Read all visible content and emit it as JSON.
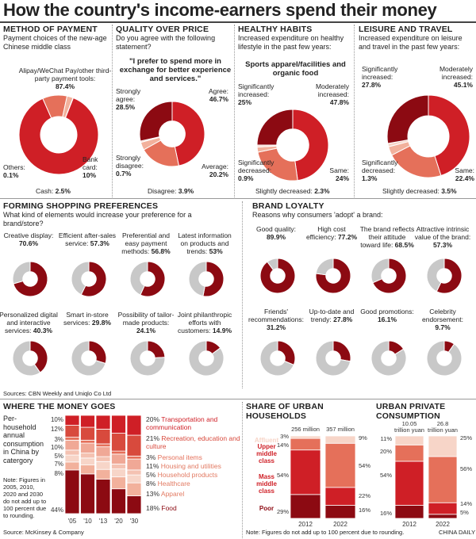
{
  "title": "How the country's income-earners spend their money",
  "colors": {
    "dark": "#8c0a12",
    "red": "#cf1f26",
    "mid": "#e5705a",
    "light": "#f2b19c",
    "pale": "#f7d5c8",
    "grey": "#c8c8c8"
  },
  "method": {
    "header": "METHOD OF PAYMENT",
    "question": "Payment choices of the new-age Chinese middle class",
    "alipay_label": "Alipay/WeChat Pay/other third-party payment tools:",
    "alipay_value": "87.4%",
    "others_label": "Others:",
    "others_value": "0.1%",
    "cash_label": "Cash:",
    "cash_value": "2.5%",
    "bank_label": "Bank card:",
    "bank_value": "10%"
  },
  "quality": {
    "header": "QUALITY OVER PRICE",
    "question": "Do you agree with the following statement?",
    "quote": "\"I prefer to spend more in exchange for better experience and services.\"",
    "sa_label": "Strongly agree:",
    "sa_value": "28.5%",
    "agree_label": "Agree:",
    "agree_value": "46.7%",
    "sd_label": "Strongly disagree:",
    "sd_value": "0.7%",
    "avg_label": "Average:",
    "avg_value": "20.2%",
    "dis_label": "Disagree:",
    "dis_value": "3.9%"
  },
  "healthy": {
    "header": "HEALTHY HABITS",
    "question": "Increased expenditure on healthy lifestyle in the past few years:",
    "sub": "Sports apparel/facilities and organic food",
    "si_label": "Significantly increased:",
    "si_value": "25%",
    "mi_label": "Moderately increased:",
    "mi_value": "47.8%",
    "sd_label": "Significantly decreased:",
    "sd_value": "0.9%",
    "same_label": "Same:",
    "same_value": "24%",
    "sld_label": "Slightly decreased:",
    "sld_value": "2.3%"
  },
  "leisure": {
    "header": "LEISURE AND TRAVEL",
    "question": "Increased expenditure on leisure and travel in the past few years:",
    "si_label": "Significantly increased:",
    "si_value": "27.8%",
    "mi_label": "Moderately increased:",
    "mi_value": "45.1%",
    "sd_label": "Significantly decreased:",
    "sd_value": "1.3%",
    "same_label": "Same:",
    "same_value": "22.4%",
    "sld_label": "Slightly decreased:",
    "sld_value": "3.5%"
  },
  "shopping": {
    "header": "FORMING SHOPPING PREFERENCES",
    "question": "What kind of elements would increase your preference for a brand/store?",
    "items": [
      {
        "label": "Creative display:",
        "value": "70.6%"
      },
      {
        "label": "Efficient after-sales service:",
        "value": "57.3%"
      },
      {
        "label": "Preferential and easy payment methods:",
        "value": "56.8%"
      },
      {
        "label": "Latest information on products and trends:",
        "value": "53%"
      },
      {
        "label": "Personalized digital and interactive services:",
        "value": "40.3%"
      },
      {
        "label": "Smart in-store services:",
        "value": "29.8%"
      },
      {
        "label": "Possibility of tailor-made products:",
        "value": "24.1%"
      },
      {
        "label": "Joint philanthropic efforts with customers:",
        "value": "14.9%"
      }
    ]
  },
  "loyalty": {
    "header": "BRAND LOYALTY",
    "question": "Reasons why consumers 'adopt' a brand:",
    "items": [
      {
        "label": "Good quality:",
        "value": "89.9%"
      },
      {
        "label": "High cost efficiency:",
        "value": "77.2%"
      },
      {
        "label": "The brand reflects their attitude toward life:",
        "value": "68.5%"
      },
      {
        "label": "Attractive intrinsic value of the brand:",
        "value": "57.3%"
      },
      {
        "label": "Friends' recommendations:",
        "value": "31.2%"
      },
      {
        "label": "Up-to-date and trendy:",
        "value": "27.8%"
      },
      {
        "label": "Good promotions:",
        "value": "16.1%"
      },
      {
        "label": "Celebrity endorsement:",
        "value": "9.7%"
      }
    ]
  },
  "sources1": "Sources: CBN Weekly and Uniqlo Co Ltd",
  "money": {
    "header": "WHERE THE MONEY GOES",
    "desc": "Per-household annual consumption in China by catergory",
    "note": "Note: Figures in 2005, 2010, 2020 and 2030 do not add up to 100 percent due to rounding.",
    "source": "Source: McKinsey & Company",
    "left_pcts": [
      "10%",
      "12%",
      "3%",
      "10%",
      "5%",
      "7%",
      "8%",
      "44%"
    ],
    "years": [
      "'05",
      "'10",
      "'13",
      "'20",
      "'30"
    ],
    "legend": [
      {
        "pct": "20%",
        "label": "Transportation and communication"
      },
      {
        "pct": "21%",
        "label": "Recreation, education and culture"
      },
      {
        "pct": "3%",
        "label": "Personal items"
      },
      {
        "pct": "11%",
        "label": "Housing and utilities"
      },
      {
        "pct": "5%",
        "label": "Household products"
      },
      {
        "pct": "8%",
        "label": "Healthcare"
      },
      {
        "pct": "13%",
        "label": "Apparel"
      },
      {
        "pct": "18%",
        "label": "Food"
      }
    ]
  },
  "households": {
    "header": "SHARE OF URBAN HOUSEHOLDS",
    "tiers": [
      "Affluent",
      "Upper middle class",
      "Mass middle class",
      "Poor"
    ],
    "top_labels": [
      "256 million",
      "357 million"
    ],
    "left_pcts": [
      "3%",
      "14%",
      "54%",
      "29%"
    ],
    "right_pcts": [
      "9%",
      "54%",
      "22%",
      "16%"
    ],
    "years": [
      "2012",
      "2022"
    ]
  },
  "private": {
    "header": "URBAN PRIVATE CONSUMPTION",
    "top_labels": [
      "10.05 trillion yuan",
      "26.8 trillion yuan"
    ],
    "left_pcts": [
      "11%",
      "20%",
      "54%",
      "16%"
    ],
    "right_pcts": [
      "25%",
      "56%",
      "14%",
      "5%"
    ],
    "years": [
      "2012",
      "2022"
    ]
  },
  "footnote": "Note: Figures do not add up to 100 percent due to rounding.",
  "credit": "CHINA DAILY",
  "chart_data": [
    {
      "type": "pie",
      "title": "METHOD OF PAYMENT",
      "categories": [
        "Alipay/WeChat Pay/other third-party payment tools",
        "Bank card",
        "Cash",
        "Others"
      ],
      "values": [
        87.4,
        10,
        2.5,
        0.1
      ]
    },
    {
      "type": "pie",
      "title": "QUALITY OVER PRICE",
      "categories": [
        "Agree",
        "Average",
        "Disagree",
        "Strongly disagree",
        "Strongly agree"
      ],
      "values": [
        46.7,
        20.2,
        3.9,
        0.7,
        28.5
      ]
    },
    {
      "type": "pie",
      "title": "HEALTHY HABITS",
      "categories": [
        "Moderately increased",
        "Same",
        "Slightly decreased",
        "Significantly decreased",
        "Significantly increased"
      ],
      "values": [
        47.8,
        24,
        2.3,
        0.9,
        25
      ]
    },
    {
      "type": "pie",
      "title": "LEISURE AND TRAVEL",
      "categories": [
        "Moderately increased",
        "Same",
        "Slightly decreased",
        "Significantly decreased",
        "Significantly increased"
      ],
      "values": [
        45.1,
        22.4,
        3.5,
        1.3,
        27.8
      ]
    },
    {
      "type": "bar",
      "title": "FORMING SHOPPING PREFERENCES",
      "values": [
        70.6,
        57.3,
        56.8,
        53,
        40.3,
        29.8,
        24.1,
        14.9
      ]
    },
    {
      "type": "bar",
      "title": "BRAND LOYALTY",
      "values": [
        89.9,
        77.2,
        68.5,
        57.3,
        31.2,
        27.8,
        16.1,
        9.7
      ]
    },
    {
      "type": "bar",
      "title": "WHERE THE MONEY GOES",
      "categories": [
        "'05",
        "'10",
        "'13",
        "'20",
        "'30"
      ],
      "series": [
        {
          "name": "Food",
          "values": [
            44,
            40,
            35,
            25,
            18
          ]
        },
        {
          "name": "Apparel",
          "values": [
            8,
            9,
            10,
            12,
            13
          ]
        },
        {
          "name": "Healthcare",
          "values": [
            7,
            7,
            8,
            8,
            8
          ]
        },
        {
          "name": "Household products",
          "values": [
            5,
            5,
            5,
            5,
            5
          ]
        },
        {
          "name": "Housing and utilities",
          "values": [
            10,
            10,
            10,
            10,
            11
          ]
        },
        {
          "name": "Personal items",
          "values": [
            3,
            3,
            3,
            3,
            3
          ]
        },
        {
          "name": "Recreation, education and culture",
          "values": [
            12,
            13,
            15,
            18,
            21
          ]
        },
        {
          "name": "Transportation and communication",
          "values": [
            10,
            12,
            14,
            18,
            20
          ]
        }
      ]
    },
    {
      "type": "bar",
      "title": "SHARE OF URBAN HOUSEHOLDS",
      "categories": [
        "2012",
        "2022"
      ],
      "series": [
        {
          "name": "Poor",
          "values": [
            29,
            16
          ]
        },
        {
          "name": "Mass middle class",
          "values": [
            54,
            22
          ]
        },
        {
          "name": "Upper middle class",
          "values": [
            14,
            54
          ]
        },
        {
          "name": "Affluent",
          "values": [
            3,
            9
          ]
        }
      ]
    },
    {
      "type": "bar",
      "title": "URBAN PRIVATE CONSUMPTION",
      "categories": [
        "2012",
        "2022"
      ],
      "series": [
        {
          "values": [
            16,
            5
          ]
        },
        {
          "values": [
            54,
            14
          ]
        },
        {
          "values": [
            20,
            56
          ]
        },
        {
          "values": [
            11,
            25
          ]
        }
      ]
    }
  ]
}
